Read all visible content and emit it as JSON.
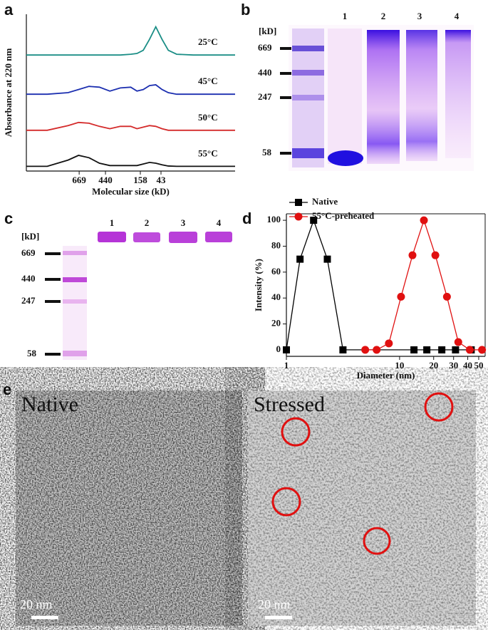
{
  "figure": {
    "panel_labels": [
      "a",
      "b",
      "c",
      "d",
      "e"
    ]
  },
  "chart_data": [
    {
      "type": "line",
      "x_label": "Molecular size (kD)",
      "y_label": "Absorbance at 220 nm",
      "x": [
        0,
        10,
        20,
        25,
        30,
        35,
        40,
        45,
        50,
        53,
        56,
        59,
        62,
        65,
        68,
        72,
        80,
        90,
        100
      ],
      "xlim": [
        0,
        100
      ],
      "ylim": [
        0,
        10
      ],
      "xticks": [
        {
          "value": 25.3,
          "label": "669"
        },
        {
          "value": 37.9,
          "label": "440"
        },
        {
          "value": 54.6,
          "label": "158"
        },
        {
          "value": 64.5,
          "label": "43"
        }
      ],
      "series": [
        {
          "name": "25°C",
          "color": "#1b8e86",
          "values": [
            7.4,
            7.4,
            7.4,
            7.4,
            7.4,
            7.4,
            7.4,
            7.4,
            7.45,
            7.5,
            7.7,
            8.4,
            9.2,
            8.4,
            7.7,
            7.45,
            7.4,
            7.4,
            7.4
          ]
        },
        {
          "name": "45°C",
          "color": "#1c2fb0",
          "values": [
            4.9,
            4.9,
            5.0,
            5.2,
            5.4,
            5.35,
            5.1,
            5.3,
            5.35,
            5.1,
            5.2,
            5.45,
            5.5,
            5.2,
            5.0,
            4.9,
            4.9,
            4.9,
            4.9
          ]
        },
        {
          "name": "50°C",
          "color": "#d42a2a",
          "values": [
            2.6,
            2.6,
            2.9,
            3.1,
            3.05,
            2.85,
            2.7,
            2.85,
            2.85,
            2.7,
            2.8,
            2.9,
            2.85,
            2.7,
            2.6,
            2.6,
            2.6,
            2.6,
            2.6
          ]
        },
        {
          "name": "55°C",
          "color": "#111111",
          "values": [
            0.3,
            0.3,
            0.7,
            1.0,
            0.85,
            0.5,
            0.35,
            0.35,
            0.35,
            0.35,
            0.45,
            0.55,
            0.5,
            0.4,
            0.32,
            0.3,
            0.3,
            0.3,
            0.3
          ]
        }
      ]
    },
    {
      "type": "line",
      "x_label": "Diameter (nm)",
      "y_label": "Intensity (%)",
      "log_x": true,
      "xlim": [
        1,
        57
      ],
      "ylim": [
        -5,
        105
      ],
      "xticks": [
        1,
        10,
        20,
        30,
        40,
        50
      ],
      "yticks": [
        0,
        20,
        40,
        60,
        80,
        100
      ],
      "legend": "upper left",
      "series": [
        {
          "name": "Native",
          "color": "#000000",
          "marker": "square",
          "x": [
            1,
            1.32,
            1.74,
            2.3,
            3.16,
            13.4,
            17.4,
            23.6,
            31.2,
            42.9
          ],
          "values": [
            0,
            70,
            100,
            70,
            0,
            0,
            0,
            0,
            0,
            0
          ]
        },
        {
          "name": "55°C-preheated",
          "color": "#e01010",
          "marker": "circle",
          "x": [
            4.97,
            6.27,
            8.04,
            10.3,
            13,
            16.4,
            20.7,
            26.2,
            33,
            41.7,
            53.5
          ],
          "values": [
            0,
            0,
            5,
            41,
            73,
            100,
            73,
            41,
            6,
            0,
            0
          ]
        }
      ]
    }
  ],
  "gel_b": {
    "unit": "[kD]",
    "markers": [
      669,
      440,
      247,
      58
    ],
    "lanes": [
      "1",
      "2",
      "3",
      "4"
    ]
  },
  "gel_c": {
    "unit": "[kD]",
    "markers": [
      669,
      440,
      247,
      58
    ],
    "lanes": [
      "1",
      "2",
      "3",
      "4"
    ]
  },
  "micrographs": [
    {
      "label": "Native",
      "scale_bar": "20 nm"
    },
    {
      "label": "Stressed",
      "scale_bar": "20 nm"
    }
  ]
}
